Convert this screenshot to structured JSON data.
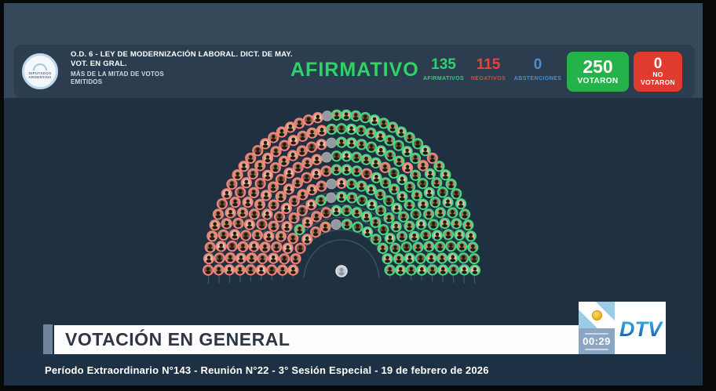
{
  "header": {
    "logo": {
      "line1": "DIPUTADOS",
      "line2": "ARGENTINA"
    },
    "order_title": "O.D. 6 - LEY DE MODERNIZACIÓN LABORAL. DICT. DE MAY. VOT. EN GRAL.",
    "order_subtitle": "MÁS DE LA MITAD DE VOTOS EMITIDOS",
    "result_word": "AFIRMATIVO",
    "result_color": "#2fd36a",
    "counters": [
      {
        "value": "135",
        "label": "AFIRMATIVOS",
        "color": "#2fd36a"
      },
      {
        "value": "115",
        "label": "NEGATIVOS",
        "color": "#e64438"
      },
      {
        "value": "0",
        "label": "ABSTENCIONES",
        "color": "#4e8ed0"
      }
    ],
    "voted_box": {
      "value": "250",
      "label": "VOTARON",
      "bg": "#25b24a"
    },
    "notvoted_box": {
      "value": "0",
      "label_line1": "NO",
      "label_line2": "VOTARON",
      "bg": "#e13a2e"
    }
  },
  "chart_data": {
    "type": "hemicycle-seat-map",
    "title": "AFIRMATIVO",
    "seats_total": 257,
    "affirmative": 135,
    "negative": 115,
    "abstentions": 0,
    "voted": 250,
    "not_voted": 0,
    "empty_seats": 6,
    "president_seat": 1,
    "rows": 9,
    "colors": {
      "affirmative_ring": "#46d886",
      "negative_ring": "#f2847c",
      "empty_seat": "#939a9f",
      "president_seat": "#c6cdd4",
      "row_guide": "rgba(110,150,185,0.38)"
    }
  },
  "footer": {
    "banner_title": "VOTACIÓN EN GENERAL",
    "session_info": "Período Extraordinario N°143 - Reunión N°22 - 3° Sesión Especial - 19 de febrero de 2026",
    "timer": "00:29",
    "channel": "DTV"
  }
}
